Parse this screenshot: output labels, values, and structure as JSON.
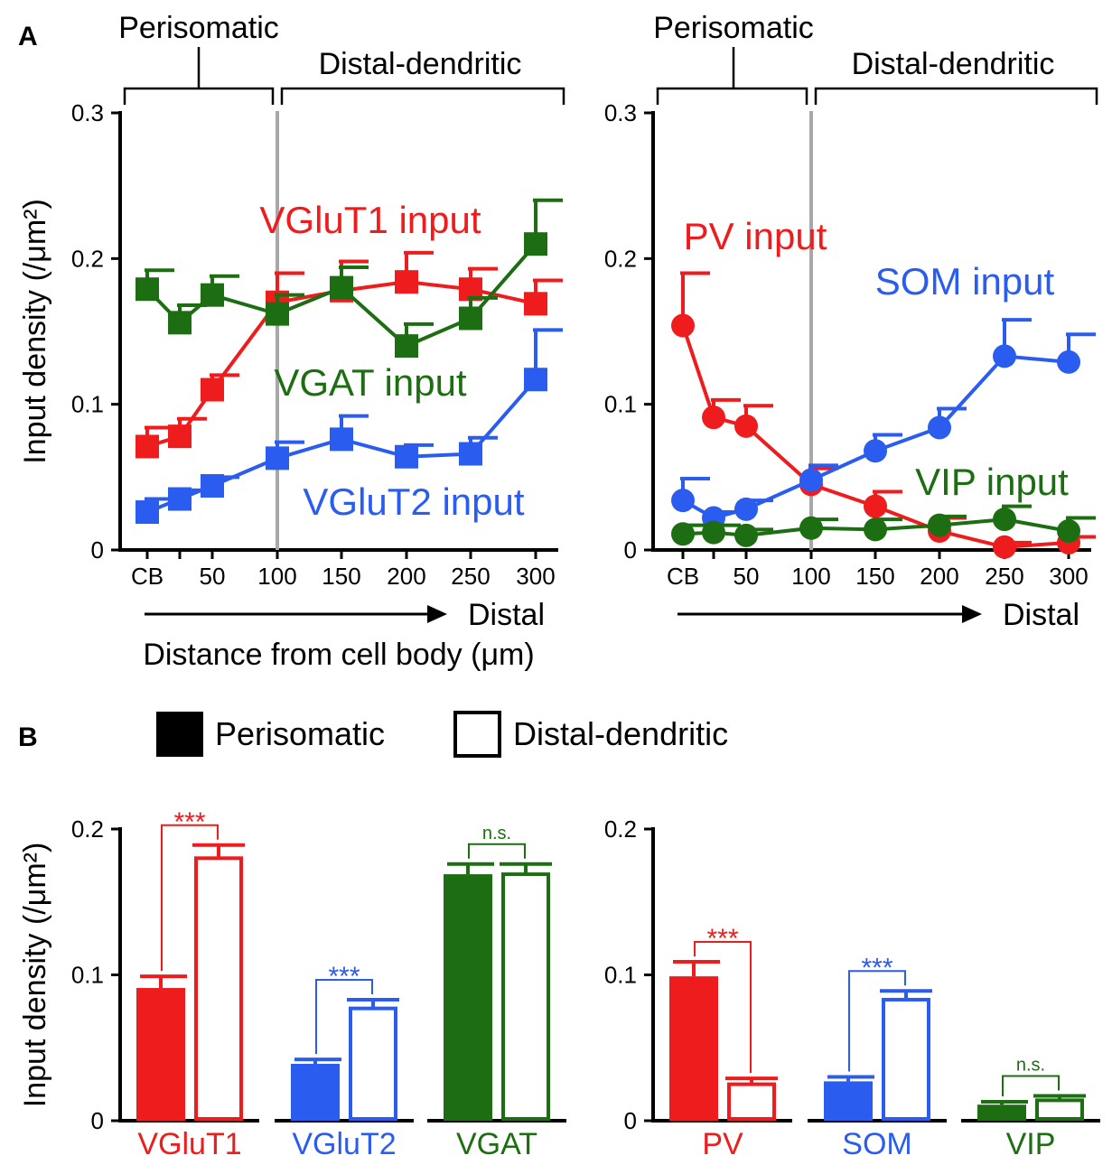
{
  "colors": {
    "red": "#ee1c1c",
    "blue": "#2b5cf0",
    "green": "#1d6e12",
    "black": "#000000",
    "gray": "#a8a8a8"
  },
  "panel_labels": {
    "a": "A",
    "b": "B"
  },
  "chart_data": [
    {
      "id": "A-left",
      "type": "line",
      "marker": "square",
      "x": [
        "CB",
        "25",
        "50",
        "100",
        "150",
        "200",
        "250",
        "300"
      ],
      "x_tick_labels": [
        "CB",
        "",
        "50",
        "100",
        "150",
        "200",
        "250",
        "300"
      ],
      "divider_at": "100",
      "ylim": [
        0,
        0.3
      ],
      "y_ticks": [
        "0",
        "0.1",
        "0.2",
        "0.3"
      ],
      "ylabel": "Input density (/μm²)",
      "xlabel": "Distance from cell body (μm)",
      "arrow_label": "Distal",
      "bracket_perisomatic": "Perisomatic",
      "bracket_distal": "Distal-dendritic",
      "series": [
        {
          "name": "VGluT1 input",
          "color": "red",
          "values": [
            0.071,
            0.078,
            0.11,
            0.17,
            0.178,
            0.184,
            0.179,
            0.169
          ],
          "errors": [
            0.013,
            0.012,
            0.01,
            0.02,
            0.02,
            0.02,
            0.014,
            0.016
          ]
        },
        {
          "name": "VGAT input",
          "color": "green",
          "values": [
            0.179,
            0.156,
            0.175,
            0.162,
            0.18,
            0.14,
            0.159,
            0.21
          ],
          "errors": [
            0.013,
            0.012,
            0.013,
            0.013,
            0.014,
            0.015,
            0.014,
            0.03
          ]
        },
        {
          "name": "VGluT2 input",
          "color": "blue",
          "values": [
            0.026,
            0.035,
            0.044,
            0.063,
            0.076,
            0.064,
            0.066,
            0.117
          ],
          "errors": [
            0.009,
            0.006,
            0.006,
            0.011,
            0.016,
            0.008,
            0.011,
            0.034
          ]
        }
      ]
    },
    {
      "id": "A-right",
      "type": "line",
      "marker": "circle",
      "x": [
        "CB",
        "25",
        "50",
        "100",
        "150",
        "200",
        "250",
        "300"
      ],
      "x_tick_labels": [
        "CB",
        "",
        "50",
        "100",
        "150",
        "200",
        "250",
        "300"
      ],
      "divider_at": "100",
      "ylim": [
        0,
        0.3
      ],
      "y_ticks": [
        "0",
        "0.1",
        "0.2",
        "0.3"
      ],
      "arrow_label": "Distal",
      "bracket_perisomatic": "Perisomatic",
      "bracket_distal": "Distal-dendritic",
      "series": [
        {
          "name": "PV input",
          "color": "red",
          "values": [
            0.154,
            0.091,
            0.085,
            0.045,
            0.03,
            0.013,
            0.002,
            0.005
          ],
          "errors": [
            0.036,
            0.012,
            0.014,
            0.011,
            0.01,
            0.009,
            0.003,
            0.004
          ]
        },
        {
          "name": "SOM input",
          "color": "blue",
          "values": [
            0.034,
            0.022,
            0.028,
            0.048,
            0.068,
            0.084,
            0.133,
            0.129
          ],
          "errors": [
            0.015,
            0.004,
            0.006,
            0.01,
            0.011,
            0.013,
            0.025,
            0.019
          ]
        },
        {
          "name": "VIP input",
          "color": "green",
          "values": [
            0.011,
            0.012,
            0.01,
            0.015,
            0.014,
            0.017,
            0.021,
            0.013
          ],
          "errors": [
            0.006,
            0.005,
            0.004,
            0.006,
            0.007,
            0.006,
            0.009,
            0.009
          ]
        }
      ]
    },
    {
      "id": "B-left",
      "type": "bar",
      "ylim": [
        0,
        0.2
      ],
      "y_ticks": [
        "0",
        "0.1",
        "0.2"
      ],
      "ylabel": "Input density (/μm²)",
      "categories": [
        "VGluT1",
        "VGluT2",
        "VGAT"
      ],
      "groups": [
        {
          "name": "VGluT1",
          "color": "red",
          "perisomatic": 0.091,
          "perisomatic_err": 0.008,
          "distal": 0.18,
          "distal_err": 0.009,
          "sig": "***"
        },
        {
          "name": "VGluT2",
          "color": "blue",
          "perisomatic": 0.039,
          "perisomatic_err": 0.003,
          "distal": 0.077,
          "distal_err": 0.006,
          "sig": "***"
        },
        {
          "name": "VGAT",
          "color": "green",
          "perisomatic": 0.169,
          "perisomatic_err": 0.007,
          "distal": 0.169,
          "distal_err": 0.007,
          "sig": "n.s."
        }
      ]
    },
    {
      "id": "B-right",
      "type": "bar",
      "ylim": [
        0,
        0.2
      ],
      "y_ticks": [
        "0",
        "0.1",
        "0.2"
      ],
      "categories": [
        "PV",
        "SOM",
        "VIP"
      ],
      "groups": [
        {
          "name": "PV",
          "color": "red",
          "perisomatic": 0.099,
          "perisomatic_err": 0.01,
          "distal": 0.025,
          "distal_err": 0.004,
          "sig": "***"
        },
        {
          "name": "SOM",
          "color": "blue",
          "perisomatic": 0.027,
          "perisomatic_err": 0.003,
          "distal": 0.083,
          "distal_err": 0.006,
          "sig": "***"
        },
        {
          "name": "VIP",
          "color": "green",
          "perisomatic": 0.011,
          "perisomatic_err": 0.002,
          "distal": 0.014,
          "distal_err": 0.003,
          "sig": "n.s."
        }
      ]
    }
  ],
  "legend": {
    "perisomatic": "Perisomatic",
    "distal": "Distal-dendritic"
  }
}
